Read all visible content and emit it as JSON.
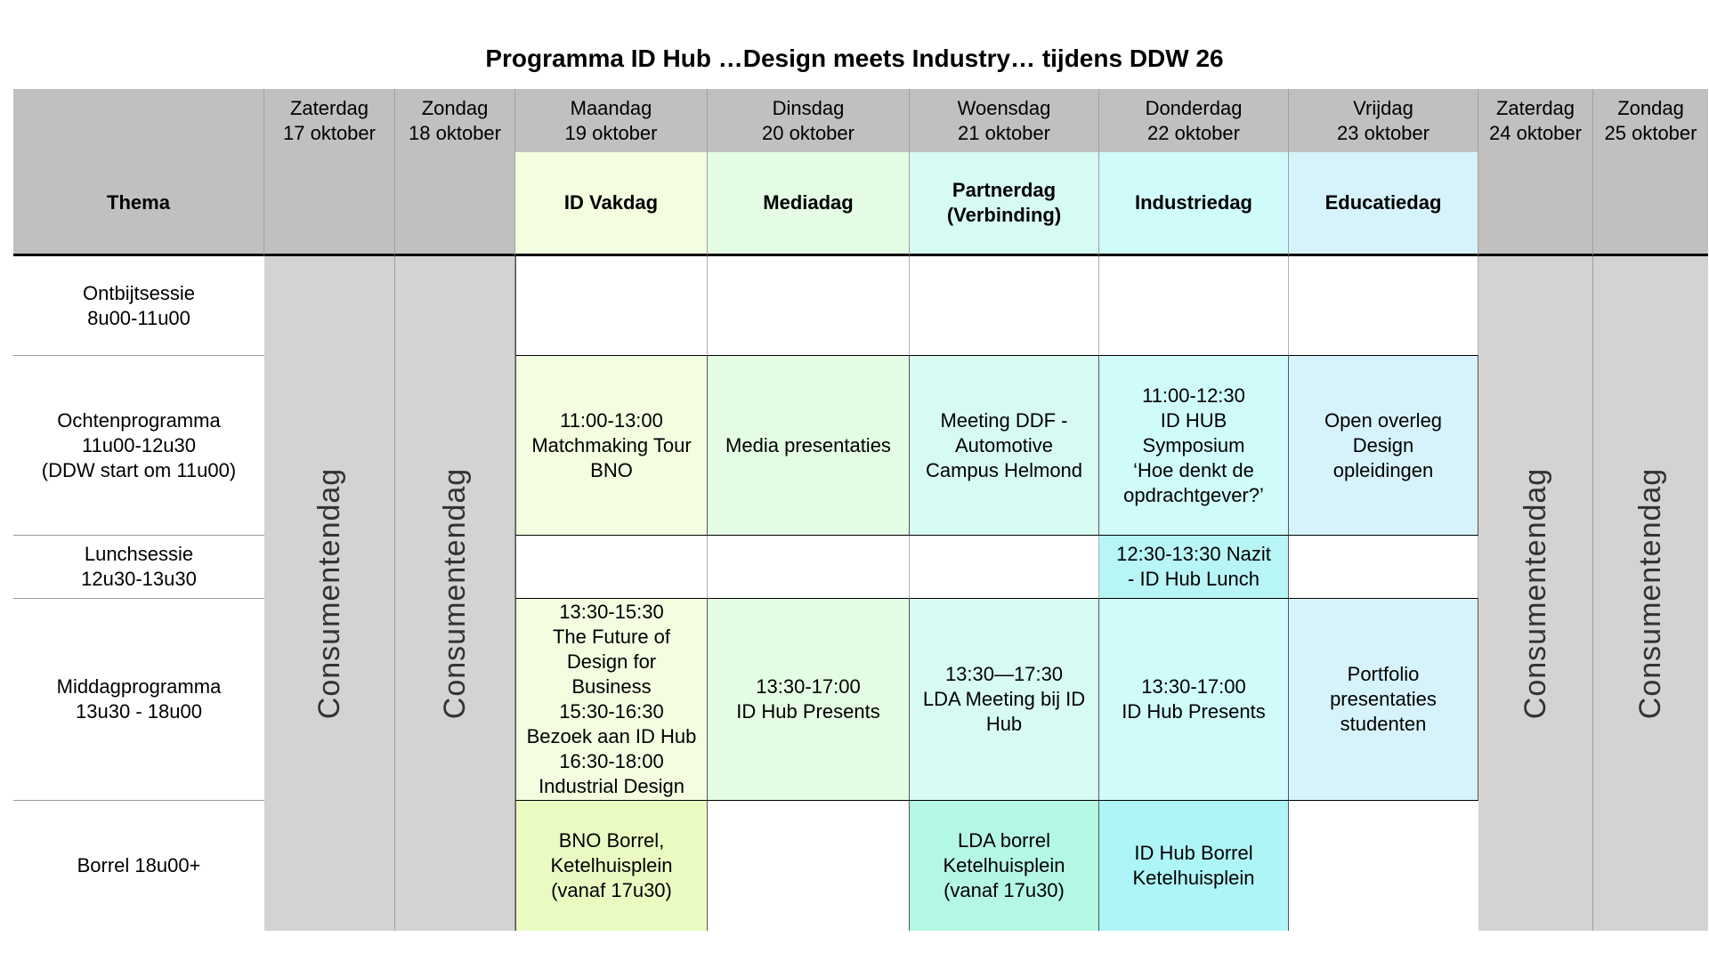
{
  "title": "Programma ID Hub …Design meets Industry… tijdens DDW 26",
  "days": [
    {
      "day": "Zaterdag",
      "date": "17 oktober"
    },
    {
      "day": "Zondag",
      "date": "18 oktober"
    },
    {
      "day": "Maandag",
      "date": "19 oktober"
    },
    {
      "day": "Dinsdag",
      "date": "20 oktober"
    },
    {
      "day": "Woensdag",
      "date": "21 oktober"
    },
    {
      "day": "Donderdag",
      "date": "22 oktober"
    },
    {
      "day": "Vrijdag",
      "date": "23 oktober"
    },
    {
      "day": "Zaterdag",
      "date": "24 oktober"
    },
    {
      "day": "Zondag",
      "date": "25 oktober"
    }
  ],
  "thema": {
    "label": "Thema",
    "mon": "ID Vakdag",
    "tue": "Mediadag",
    "wed_1": "Partnerdag",
    "wed_2": "(Verbinding)",
    "thu": "Industriedag",
    "fri": "Educatiedag"
  },
  "consumer_label": "Consumentendag",
  "rows": {
    "ontbijt": {
      "l1": "Ontbijtsessie",
      "l2": "8u00-11u00"
    },
    "ochtend": {
      "l1": "Ochtenprogramma",
      "l2": "11u00-12u30",
      "l3": "(DDW start om 11u00)"
    },
    "lunch": {
      "l1": "Lunchsessie",
      "l2": "12u30-13u30"
    },
    "middag": {
      "l1": "Middagprogramma",
      "l2": "13u30 - 18u00"
    },
    "borrel": {
      "l1": "Borrel 18u00+"
    }
  },
  "cells": {
    "ochtend_mon": [
      "11:00-13:00",
      "Matchmaking Tour",
      "BNO"
    ],
    "ochtend_tue": [
      "Media presentaties"
    ],
    "ochtend_wed": [
      "Meeting DDF -",
      "Automotive",
      "Campus Helmond"
    ],
    "ochtend_thu": [
      "11:00-12:30",
      "ID HUB",
      "Symposium",
      "‘Hoe denkt de",
      "opdrachtgever?’"
    ],
    "ochtend_fri": [
      "Open overleg",
      "Design",
      "opleidingen"
    ],
    "lunch_thu": [
      "12:30-13:30 Nazit",
      "- ID Hub Lunch"
    ],
    "middag_mon": [
      "13:30-15:30",
      "The Future of",
      "Design for",
      "Business",
      "15:30-16:30",
      "Bezoek aan ID Hub",
      "16:30-18:00",
      "Industrial Design"
    ],
    "middag_tue": [
      "13:30-17:00",
      "ID Hub Presents"
    ],
    "middag_wed": [
      "13:30—17:30",
      "LDA Meeting bij ID",
      "Hub"
    ],
    "middag_thu": [
      "13:30-17:00",
      "ID Hub Presents"
    ],
    "middag_fri": [
      "Portfolio",
      "presentaties",
      "studenten"
    ],
    "borrel_mon": [
      "BNO Borrel,",
      "Ketelhuisplein",
      "(vanaf 17u30)"
    ],
    "borrel_wed": [
      "LDA borrel",
      "Ketelhuisplein",
      "(vanaf 17u30)"
    ],
    "borrel_thu": [
      "ID Hub Borrel",
      "Ketelhuisplein"
    ]
  }
}
